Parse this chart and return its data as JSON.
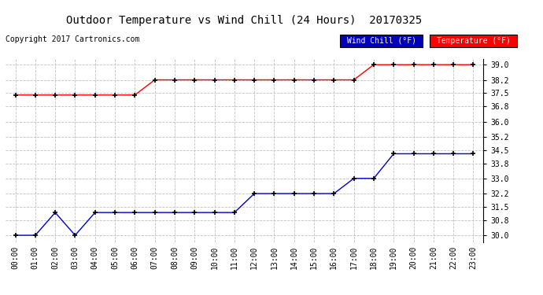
{
  "title": "Outdoor Temperature vs Wind Chill (24 Hours)  20170325",
  "copyright": "Copyright 2017 Cartronics.com",
  "background_color": "#ffffff",
  "plot_bg_color": "#ffffff",
  "grid_color": "#c0c0c0",
  "x_labels": [
    "00:00",
    "01:00",
    "02:00",
    "03:00",
    "04:00",
    "05:00",
    "06:00",
    "07:00",
    "08:00",
    "09:00",
    "10:00",
    "11:00",
    "12:00",
    "13:00",
    "14:00",
    "15:00",
    "16:00",
    "17:00",
    "18:00",
    "19:00",
    "20:00",
    "21:00",
    "22:00",
    "23:00"
  ],
  "y_ticks": [
    30.0,
    30.8,
    31.5,
    32.2,
    33.0,
    33.8,
    34.5,
    35.2,
    36.0,
    36.8,
    37.5,
    38.2,
    39.0
  ],
  "ylim": [
    29.65,
    39.3
  ],
  "temp_data": [
    37.4,
    37.4,
    37.4,
    37.4,
    37.4,
    37.4,
    37.4,
    38.2,
    38.2,
    38.2,
    38.2,
    38.2,
    38.2,
    38.2,
    38.2,
    38.2,
    38.2,
    38.2,
    39.0,
    39.0,
    39.0,
    39.0,
    39.0,
    39.0
  ],
  "windchill_data": [
    30.0,
    30.0,
    31.2,
    30.0,
    31.2,
    31.2,
    31.2,
    31.2,
    31.2,
    31.2,
    31.2,
    31.2,
    32.2,
    32.2,
    32.2,
    32.2,
    32.2,
    33.0,
    33.0,
    34.3,
    34.3,
    34.3,
    34.3,
    34.3
  ],
  "temp_color": "#ff0000",
  "windchill_color": "#0000cc",
  "temp_label": "Temperature (°F)",
  "windchill_label": "Wind Chill (°F)",
  "legend_temp_bg": "#ff0000",
  "legend_wc_bg": "#0000bb",
  "marker": "+",
  "markersize": 4,
  "markeredgewidth": 1.2,
  "linewidth": 1.0,
  "title_fontsize": 10,
  "tick_fontsize": 7,
  "copyright_fontsize": 7
}
